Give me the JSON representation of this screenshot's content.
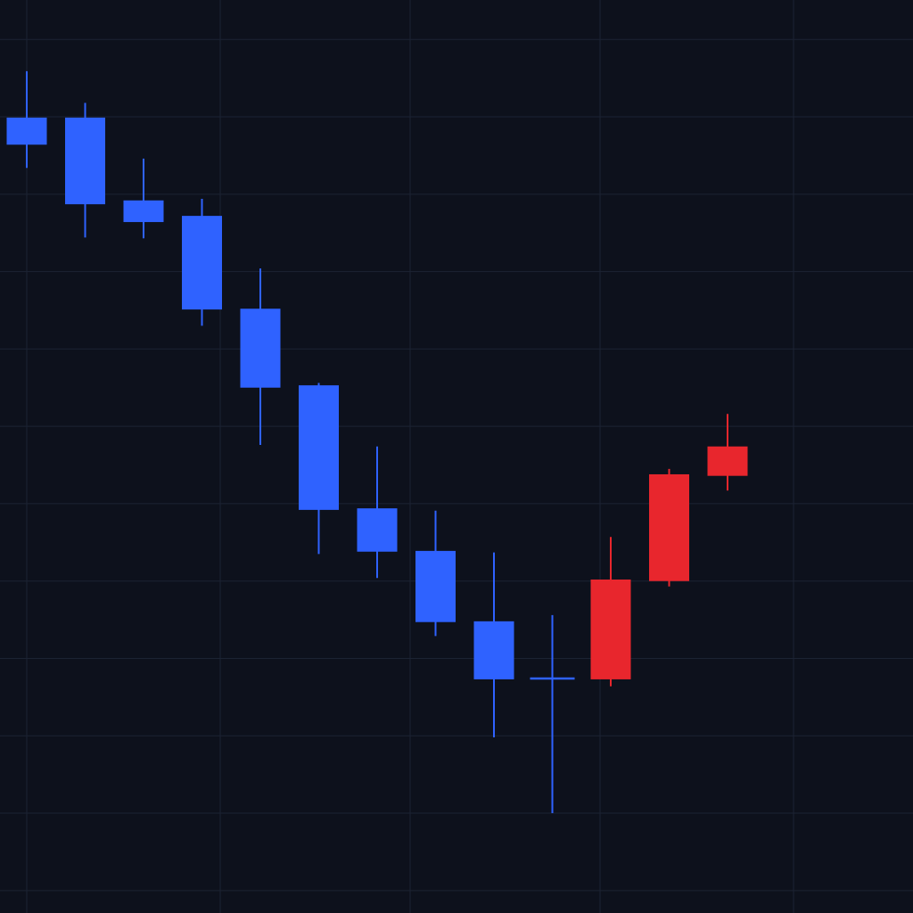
{
  "chart_data": {
    "type": "candlestick",
    "categories": [
      null,
      null,
      null,
      null,
      null,
      null,
      null,
      null,
      null,
      null,
      null,
      null,
      null
    ],
    "open": [
      9.99,
      9.99,
      8.92,
      8.72,
      7.52,
      6.53,
      4.94,
      4.39,
      3.48,
      2.74,
      2.73,
      4.0,
      5.36
    ],
    "high": [
      10.59,
      10.18,
      9.46,
      8.94,
      8.04,
      6.56,
      5.74,
      4.91,
      4.37,
      3.56,
      4.57,
      5.45,
      6.16
    ],
    "low": [
      9.34,
      8.44,
      8.43,
      7.3,
      5.76,
      4.35,
      4.04,
      3.29,
      1.98,
      1.0,
      2.64,
      3.93,
      5.17
    ],
    "close": [
      9.64,
      8.87,
      8.64,
      7.51,
      6.5,
      4.92,
      4.38,
      3.47,
      2.73,
      2.74,
      4.02,
      5.38,
      5.74
    ],
    "up_color": "#e8262d",
    "down_color": "#2f62ff",
    "ylim": [
      -0.29,
      11.51
    ],
    "yticks": [
      0,
      1,
      2,
      3,
      4,
      5,
      6,
      7,
      8,
      9,
      10,
      11
    ],
    "grid": true
  }
}
